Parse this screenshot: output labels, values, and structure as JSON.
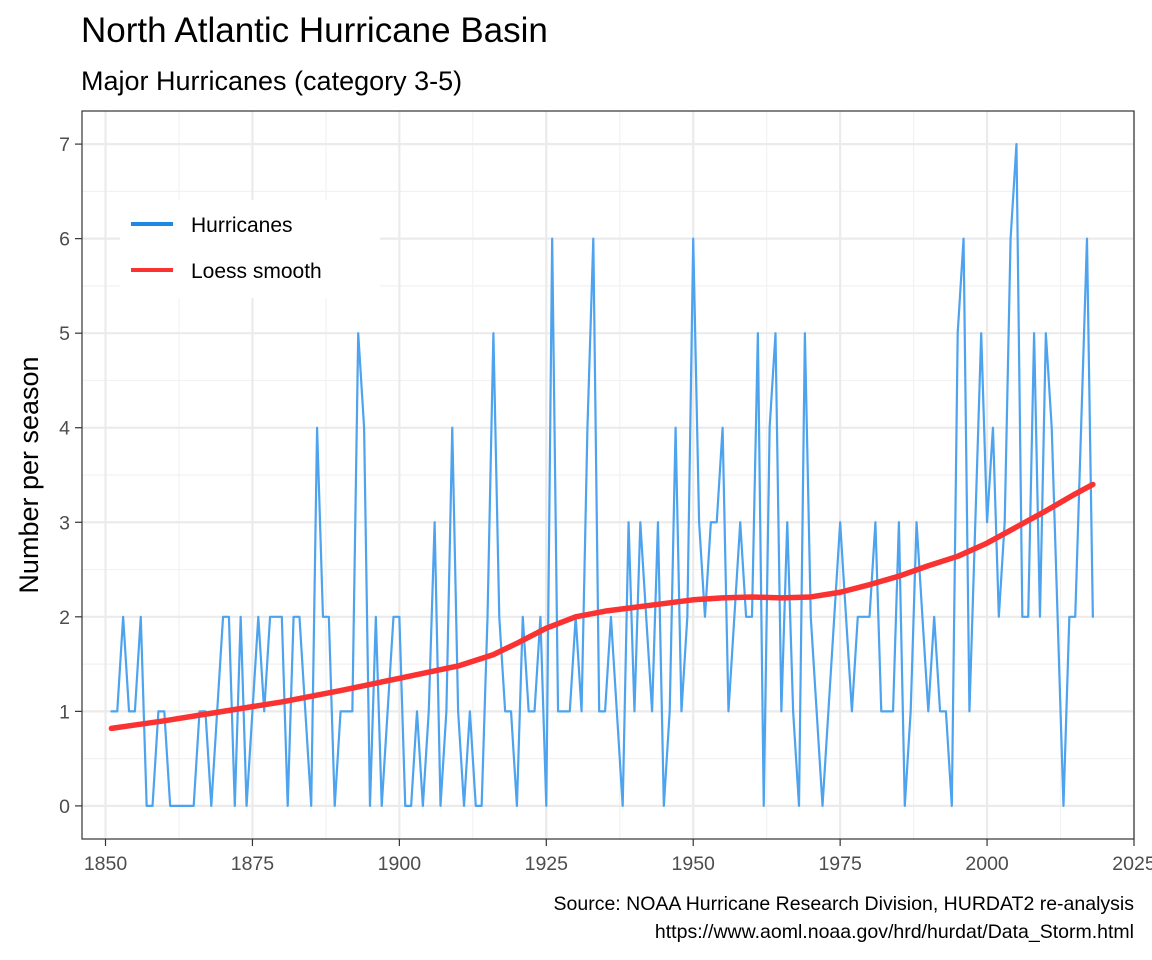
{
  "chart_data": {
    "type": "line",
    "title": "North Atlantic Hurricane Basin",
    "subtitle": "Major Hurricanes (category 3-5)",
    "xlabel": "",
    "ylabel": "Number per season",
    "xlim": [
      1846,
      2025
    ],
    "ylim": [
      -0.35,
      7.35
    ],
    "x_ticks": [
      1850,
      1875,
      1900,
      1925,
      1950,
      1975,
      2000,
      2025
    ],
    "y_ticks": [
      0,
      1,
      2,
      3,
      4,
      5,
      6,
      7
    ],
    "grid": true,
    "legend_position": "top-left",
    "caption": [
      "Source: NOAA Hurricane Research Division, HURDAT2 re-analysis",
      "https://www.aoml.noaa.gov/hrd/hurdat/Data_Storm.html"
    ],
    "series": [
      {
        "name": "Hurricanes",
        "color": "#4da3ee",
        "x": [
          1851,
          1852,
          1853,
          1854,
          1855,
          1856,
          1857,
          1858,
          1859,
          1860,
          1861,
          1862,
          1863,
          1864,
          1865,
          1866,
          1867,
          1868,
          1869,
          1870,
          1871,
          1872,
          1873,
          1874,
          1875,
          1876,
          1877,
          1878,
          1879,
          1880,
          1881,
          1882,
          1883,
          1884,
          1885,
          1886,
          1887,
          1888,
          1889,
          1890,
          1891,
          1892,
          1893,
          1894,
          1895,
          1896,
          1897,
          1898,
          1899,
          1900,
          1901,
          1902,
          1903,
          1904,
          1905,
          1906,
          1907,
          1908,
          1909,
          1910,
          1911,
          1912,
          1913,
          1914,
          1915,
          1916,
          1917,
          1918,
          1919,
          1920,
          1921,
          1922,
          1923,
          1924,
          1925,
          1926,
          1927,
          1928,
          1929,
          1930,
          1931,
          1932,
          1933,
          1934,
          1935,
          1936,
          1937,
          1938,
          1939,
          1940,
          1941,
          1942,
          1943,
          1944,
          1945,
          1946,
          1947,
          1948,
          1949,
          1950,
          1951,
          1952,
          1953,
          1954,
          1955,
          1956,
          1957,
          1958,
          1959,
          1960,
          1961,
          1962,
          1963,
          1964,
          1965,
          1966,
          1967,
          1968,
          1969,
          1970,
          1971,
          1972,
          1973,
          1974,
          1975,
          1976,
          1977,
          1978,
          1979,
          1980,
          1981,
          1982,
          1983,
          1984,
          1985,
          1986,
          1987,
          1988,
          1989,
          1990,
          1991,
          1992,
          1993,
          1994,
          1995,
          1996,
          1997,
          1998,
          1999,
          2000,
          2001,
          2002,
          2003,
          2004,
          2005,
          2006,
          2007,
          2008,
          2009,
          2010,
          2011,
          2012,
          2013,
          2014,
          2015,
          2016,
          2017,
          2018
        ],
        "values": [
          1,
          1,
          2,
          1,
          1,
          2,
          0,
          0,
          1,
          1,
          0,
          0,
          0,
          0,
          0,
          1,
          1,
          0,
          1,
          2,
          2,
          0,
          2,
          0,
          1,
          2,
          1,
          2,
          2,
          2,
          0,
          2,
          2,
          1,
          0,
          4,
          2,
          2,
          0,
          1,
          1,
          1,
          5,
          4,
          0,
          2,
          0,
          1,
          2,
          2,
          0,
          0,
          1,
          0,
          1,
          3,
          0,
          1,
          4,
          1,
          0,
          1,
          0,
          0,
          2,
          5,
          2,
          1,
          1,
          0,
          2,
          1,
          1,
          2,
          0,
          6,
          1,
          1,
          1,
          2,
          1,
          4,
          6,
          1,
          1,
          2,
          1,
          0,
          3,
          1,
          3,
          2,
          1,
          3,
          0,
          1,
          4,
          1,
          2,
          6,
          3,
          2,
          3,
          3,
          4,
          1,
          2,
          3,
          2,
          2,
          5,
          0,
          4,
          5,
          1,
          3,
          1,
          0,
          5,
          2,
          1,
          0,
          1,
          2,
          3,
          2,
          1,
          2,
          2,
          2,
          3,
          1,
          1,
          1,
          3,
          0,
          1,
          3,
          2,
          1,
          2,
          1,
          1,
          0,
          5,
          6,
          1,
          3,
          5,
          3,
          4,
          2,
          3,
          6,
          7,
          2,
          2,
          5,
          2,
          5,
          4,
          2,
          0,
          2,
          2,
          4,
          6,
          2
        ]
      },
      {
        "name": "Loess smooth",
        "color": "#fa3232",
        "x": [
          1851,
          1860,
          1870,
          1880,
          1890,
          1900,
          1910,
          1916,
          1920,
          1925,
          1930,
          1935,
          1940,
          1945,
          1950,
          1955,
          1960,
          1965,
          1970,
          1975,
          1980,
          1985,
          1990,
          1995,
          2000,
          2005,
          2010,
          2015,
          2018
        ],
        "values": [
          0.82,
          0.9,
          1.0,
          1.1,
          1.22,
          1.35,
          1.48,
          1.6,
          1.72,
          1.88,
          2.0,
          2.06,
          2.1,
          2.14,
          2.18,
          2.2,
          2.21,
          2.2,
          2.21,
          2.26,
          2.34,
          2.43,
          2.54,
          2.64,
          2.78,
          2.95,
          3.12,
          3.3,
          3.4
        ]
      }
    ]
  }
}
